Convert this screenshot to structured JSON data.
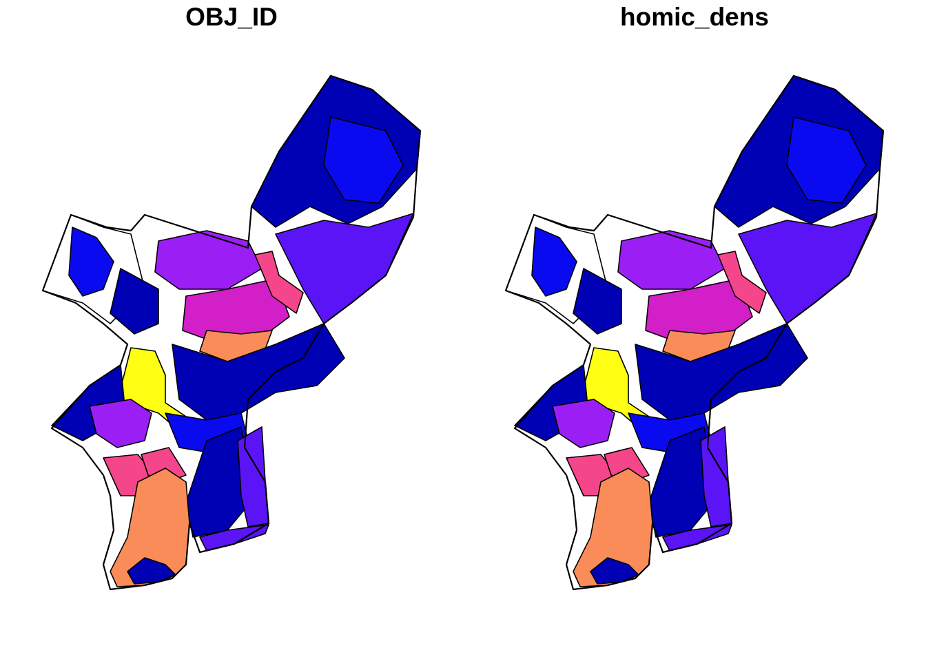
{
  "panels": [
    {
      "id": "obj_id",
      "title": "OBJ_ID"
    },
    {
      "id": "homic_dens",
      "title": "homic_dens"
    }
  ],
  "palette": {
    "white": "#ffffff",
    "dark_blue": "#0000b4",
    "blue": "#0a0af0",
    "violet": "#5a14f5",
    "purple": "#9b1ff5",
    "magenta": "#d21fc8",
    "pink": "#f5468c",
    "orange": "#fa8c5a",
    "yellow": "#ffff14"
  },
  "regions": [
    {
      "name": "northwest-white",
      "fill": "white"
    },
    {
      "name": "northwest-blue",
      "fill": "blue"
    },
    {
      "name": "northwest-dark",
      "fill": "dark_blue"
    },
    {
      "name": "northeast-dark",
      "fill": "dark_blue"
    },
    {
      "name": "northeast-blue",
      "fill": "blue"
    },
    {
      "name": "northeast-violet",
      "fill": "violet"
    },
    {
      "name": "north-purple",
      "fill": "purple"
    },
    {
      "name": "north-magenta",
      "fill": "magenta"
    },
    {
      "name": "north-pink",
      "fill": "pink"
    },
    {
      "name": "north-orange",
      "fill": "orange"
    },
    {
      "name": "fairmount-yellow",
      "fill": "yellow"
    },
    {
      "name": "west-dark",
      "fill": "dark_blue"
    },
    {
      "name": "west-purple",
      "fill": "purple"
    },
    {
      "name": "west-pink",
      "fill": "pink"
    },
    {
      "name": "center-dark",
      "fill": "dark_blue"
    },
    {
      "name": "center-blue",
      "fill": "blue"
    },
    {
      "name": "south-dark",
      "fill": "dark_blue"
    },
    {
      "name": "south-violet",
      "fill": "violet"
    },
    {
      "name": "southwest-pink",
      "fill": "pink"
    },
    {
      "name": "southwest-orange",
      "fill": "orange"
    },
    {
      "name": "airport-dark",
      "fill": "dark_blue"
    },
    {
      "name": "delaware-edge",
      "fill": "violet"
    }
  ]
}
